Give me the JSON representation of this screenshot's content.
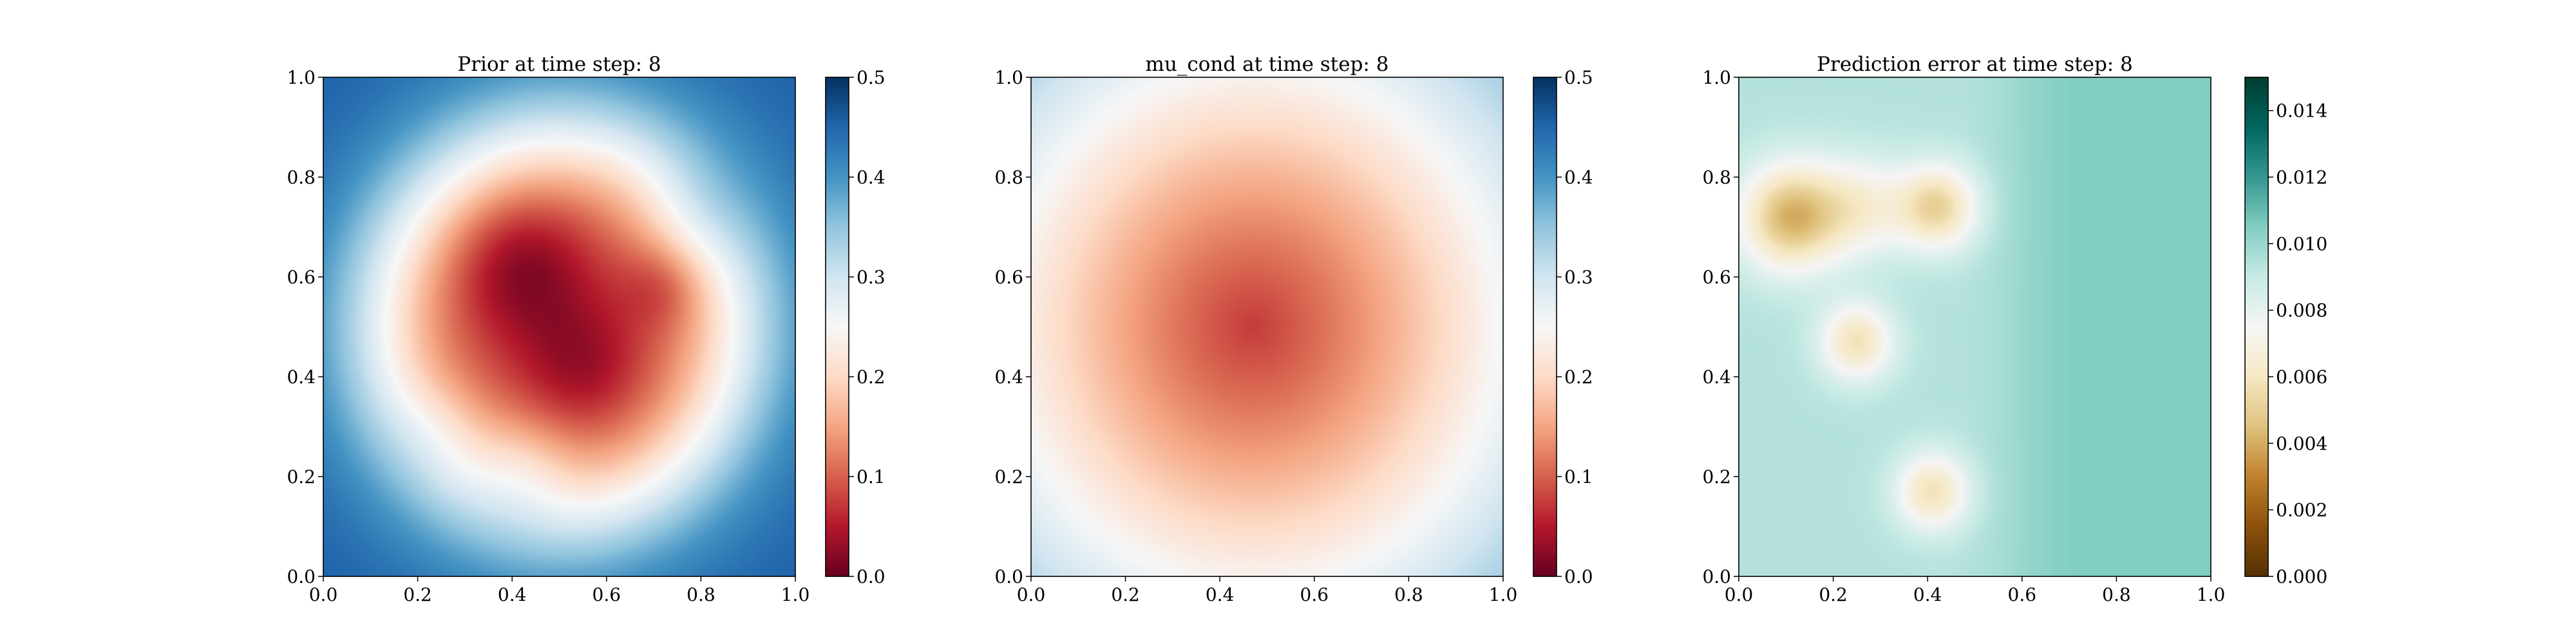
{
  "chart_data": [
    {
      "type": "heatmap",
      "title": "Prior at time step: 8",
      "xlabel": "",
      "ylabel": "",
      "xlim": [
        0.0,
        1.0
      ],
      "ylim": [
        0.0,
        1.0
      ],
      "xticks": [
        "0.0",
        "0.2",
        "0.4",
        "0.6",
        "0.8",
        "1.0"
      ],
      "yticks": [
        "0.0",
        "0.2",
        "0.4",
        "0.6",
        "0.8",
        "1.0"
      ],
      "colormap": "RdBu",
      "colorbar": {
        "range": [
          0.0,
          0.5
        ],
        "ticks": [
          "0.0",
          "0.1",
          "0.2",
          "0.3",
          "0.4",
          "0.5"
        ]
      },
      "field": {
        "base": 0.46,
        "radial": {
          "center": [
            0.5,
            0.5
          ],
          "radius": 0.38,
          "width": 0.085,
          "amplitude": 0.39
        },
        "bumps": [
          {
            "center": [
              0.42,
              0.62
            ],
            "sigma": 0.1,
            "amplitude": -0.07
          },
          {
            "center": [
              0.55,
              0.42
            ],
            "sigma": 0.09,
            "amplitude": -0.05
          },
          {
            "center": [
              0.72,
              0.58
            ],
            "sigma": 0.06,
            "amplitude": -0.04
          },
          {
            "center": [
              0.42,
              0.22
            ],
            "sigma": 0.08,
            "amplitude": 0.05
          },
          {
            "center": [
              0.78,
              0.72
            ],
            "sigma": 0.08,
            "amplitude": 0.04
          },
          {
            "center": [
              0.25,
              0.3
            ],
            "sigma": 0.07,
            "amplitude": 0.03
          }
        ]
      }
    },
    {
      "type": "heatmap",
      "title": "mu_cond at time step: 8",
      "xlabel": "",
      "ylabel": "",
      "xlim": [
        0.0,
        1.0
      ],
      "ylim": [
        0.0,
        1.0
      ],
      "xticks": [
        "0.0",
        "0.2",
        "0.4",
        "0.6",
        "0.8",
        "1.0"
      ],
      "yticks": [
        "0.0",
        "0.2",
        "0.4",
        "0.6",
        "0.8",
        "1.0"
      ],
      "colormap": "RdBu",
      "colorbar": {
        "range": [
          0.0,
          0.5
        ],
        "ticks": [
          "0.0",
          "0.1",
          "0.2",
          "0.3",
          "0.4",
          "0.5"
        ]
      },
      "field": {
        "base": 0.5,
        "radial": {
          "center": [
            0.47,
            0.5
          ],
          "radius": 0.52,
          "width": 0.3,
          "amplitude": 0.5
        },
        "bumps": []
      }
    },
    {
      "type": "heatmap",
      "title": "Prediction error at time step: 8",
      "xlabel": "",
      "ylabel": "",
      "xlim": [
        0.0,
        1.0
      ],
      "ylim": [
        0.0,
        1.0
      ],
      "xticks": [
        "0.0",
        "0.2",
        "0.4",
        "0.6",
        "0.8",
        "1.0"
      ],
      "yticks": [
        "0.0",
        "0.2",
        "0.4",
        "0.6",
        "0.8",
        "1.0"
      ],
      "colormap": "BrBG",
      "colorbar": {
        "range": [
          0.0,
          0.015
        ],
        "ticks": [
          "0.000",
          "0.002",
          "0.004",
          "0.006",
          "0.008",
          "0.010",
          "0.012",
          "0.014"
        ]
      },
      "field": {
        "base": 0.0094,
        "gradient": {
          "x_start": 0.45,
          "x_end": 0.75,
          "delta": 0.0011
        },
        "bumps": [
          {
            "center": [
              0.11,
              0.72
            ],
            "sigma": 0.075,
            "amplitude": -0.0052
          },
          {
            "center": [
              0.42,
              0.74
            ],
            "sigma": 0.06,
            "amplitude": -0.0042
          },
          {
            "center": [
              0.25,
              0.47
            ],
            "sigma": 0.055,
            "amplitude": -0.0036
          },
          {
            "center": [
              0.41,
              0.17
            ],
            "sigma": 0.055,
            "amplitude": -0.0036
          },
          {
            "center": [
              0.26,
              0.74
            ],
            "sigma": 0.07,
            "amplitude": -0.0025
          }
        ]
      }
    }
  ]
}
